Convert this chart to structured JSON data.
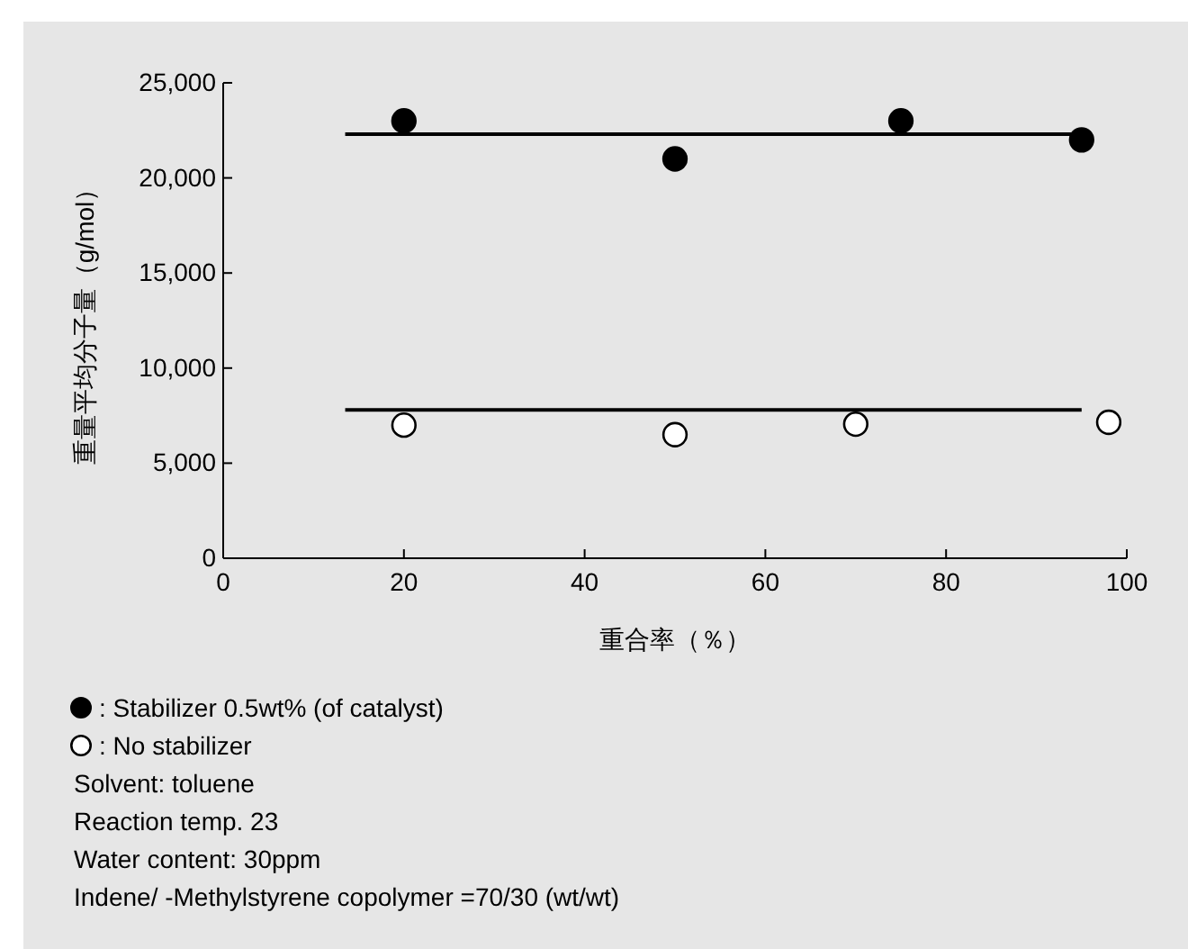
{
  "chart_data": {
    "type": "scatter",
    "xlabel": "重合率（％）",
    "ylabel": "重量平均分子量（g/mol）",
    "xlim": [
      0,
      100
    ],
    "xticks": [
      0,
      20,
      40,
      60,
      80,
      100
    ],
    "ylim": [
      0,
      25000
    ],
    "yticks": [
      {
        "value": 0,
        "label": "0"
      },
      {
        "value": 5000,
        "label": "5,000"
      },
      {
        "value": 10000,
        "label": "10,000"
      },
      {
        "value": 15000,
        "label": "15,000"
      },
      {
        "value": 20000,
        "label": "20,000"
      },
      {
        "value": 25000,
        "label": "25,000"
      }
    ],
    "grid": false,
    "legend": "bottom left",
    "marker": "circle",
    "series": [
      {
        "name": ": Stabilizer 0.5wt% (of catalyst)",
        "color": "#000000",
        "x": [
          20,
          50,
          75,
          95
        ],
        "values": [
          23000,
          21000,
          23000,
          22000
        ]
      },
      {
        "name": ": No stabilizer",
        "color": "#ffffff",
        "x": [
          20,
          50,
          70,
          98
        ],
        "values": [
          7000,
          6500,
          7050,
          7150
        ]
      },
      {
        "type": "line",
        "marker": "none",
        "color": "#000000",
        "x": [
          13.5,
          95
        ],
        "values": [
          22300,
          22300
        ]
      },
      {
        "type": "line",
        "marker": "none",
        "color": "#000000",
        "x": [
          13.5,
          95
        ],
        "values": [
          7800,
          7800
        ]
      }
    ],
    "annotations": [
      "Solvent: toluene",
      "Reaction temp. 23",
      "Water content: 30ppm",
      "Indene/ -Methylstyrene copolymer =70/30 (wt/wt)"
    ]
  }
}
